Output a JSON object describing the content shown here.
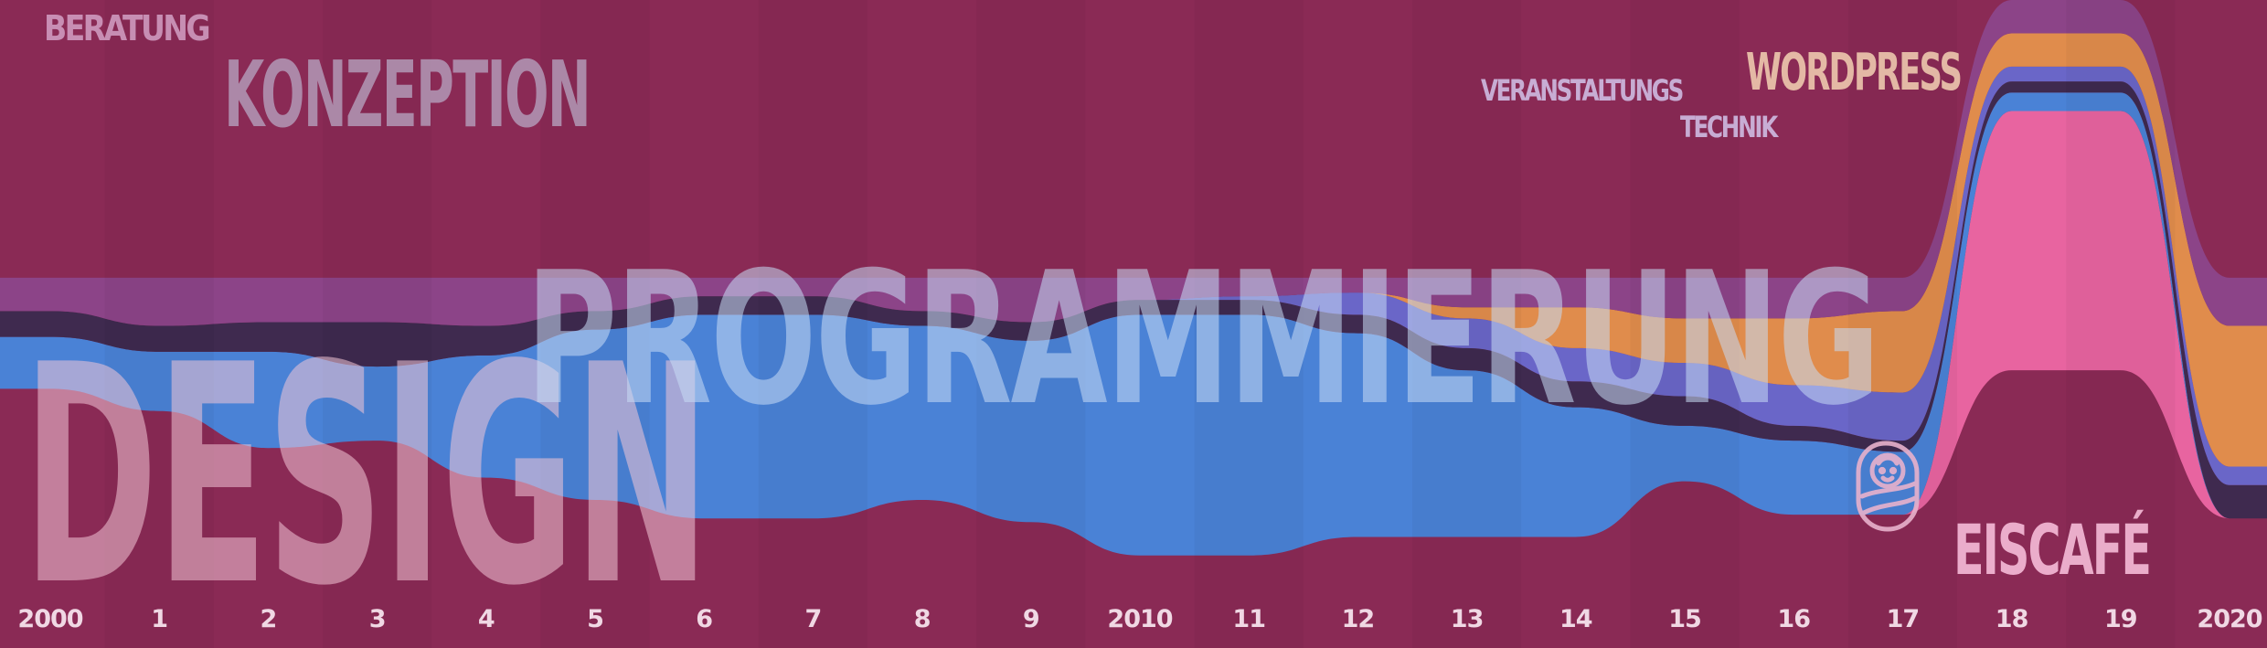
{
  "chart_data": {
    "type": "area",
    "title": "",
    "xlabel": "",
    "ylabel": "",
    "ylim": [
      0,
      1
    ],
    "x": [
      2000,
      2001,
      2002,
      2003,
      2004,
      2005,
      2006,
      2007,
      2008,
      2009,
      2010,
      2011,
      2012,
      2013,
      2014,
      2015,
      2016,
      2017,
      2018,
      2019,
      2020
    ],
    "tick_labels": [
      "2000",
      "1",
      "2",
      "3",
      "4",
      "5",
      "6",
      "7",
      "8",
      "9",
      "2010",
      "11",
      "12",
      "13",
      "14",
      "15",
      "16",
      "17",
      "18",
      "19",
      "2020"
    ],
    "series": [
      {
        "name": "DESIGN",
        "color": "#8a2a55",
        "values": [
          0.7,
          0.64,
          0.54,
          0.56,
          0.46,
          0.4,
          0.35,
          0.35,
          0.4,
          0.34,
          0.25,
          0.25,
          0.3,
          0.3,
          0.3,
          0.45,
          0.36,
          0.36,
          0.75,
          0.75,
          0.35
        ]
      },
      {
        "name": "EISCAFÉ",
        "color": "#e864a0",
        "values": [
          0.0,
          0.0,
          0.0,
          0.0,
          0.0,
          0.0,
          0.0,
          0.0,
          0.0,
          0.0,
          0.0,
          0.0,
          0.0,
          0.0,
          0.0,
          0.0,
          0.0,
          0.0,
          0.7,
          0.7,
          0.0
        ]
      },
      {
        "name": "PROGRAMMIERUNG",
        "color": "#4a82d6",
        "values": [
          0.14,
          0.16,
          0.26,
          0.2,
          0.33,
          0.46,
          0.55,
          0.55,
          0.47,
          0.49,
          0.65,
          0.65,
          0.55,
          0.45,
          0.35,
          0.15,
          0.2,
          0.17,
          0.05,
          0.05,
          0.0
        ]
      },
      {
        "name": "KONZEPTION",
        "color": "#3f2a4f",
        "values": [
          0.07,
          0.07,
          0.08,
          0.12,
          0.08,
          0.05,
          0.05,
          0.05,
          0.04,
          0.05,
          0.04,
          0.04,
          0.05,
          0.06,
          0.07,
          0.08,
          0.04,
          0.03,
          0.03,
          0.03,
          0.09
        ]
      },
      {
        "name": "TECHNIK",
        "color": "#6a66c8",
        "values": [
          0.0,
          0.0,
          0.0,
          0.0,
          0.0,
          0.0,
          0.0,
          0.0,
          0.0,
          0.0,
          0.0,
          0.01,
          0.06,
          0.08,
          0.09,
          0.09,
          0.11,
          0.13,
          0.04,
          0.04,
          0.05
        ]
      },
      {
        "name": "WORDPRESS",
        "color": "#e08c4c",
        "values": [
          0.0,
          0.0,
          0.0,
          0.0,
          0.0,
          0.0,
          0.0,
          0.0,
          0.0,
          0.0,
          0.0,
          0.0,
          0.0,
          0.03,
          0.11,
          0.12,
          0.18,
          0.22,
          0.09,
          0.09,
          0.38
        ]
      },
      {
        "name": "VERANSTALTUNGS",
        "color": "#8c4488",
        "values": [
          0.0,
          0.0,
          0.0,
          0.0,
          0.0,
          0.0,
          0.0,
          0.0,
          0.0,
          0.0,
          0.0,
          0.0,
          0.0,
          0.0,
          0.0,
          0.0,
          0.0,
          0.0,
          0.0,
          0.0,
          0.0
        ]
      },
      {
        "name": "BERATUNG",
        "color": "#8c4488",
        "values": [
          0.09,
          0.13,
          0.12,
          0.12,
          0.13,
          0.09,
          0.05,
          0.05,
          0.09,
          0.12,
          0.06,
          0.05,
          0.04,
          0.08,
          0.08,
          0.11,
          0.11,
          0.09,
          0.09,
          0.09,
          0.13
        ]
      }
    ],
    "legend": "none",
    "grid": false
  },
  "icon": "baby-icon"
}
